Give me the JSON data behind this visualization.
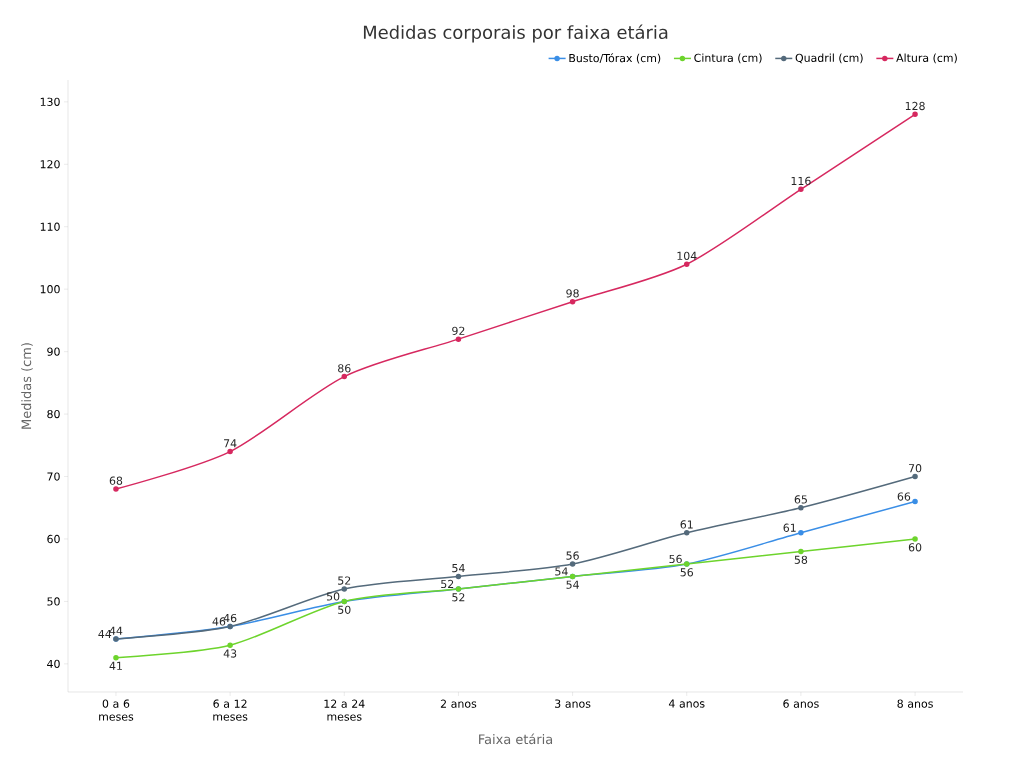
{
  "chart_data": {
    "type": "line",
    "title": "Medidas corporais por faixa etária",
    "xlabel": "Faixa etária",
    "ylabel": "Medidas (cm)",
    "categories": [
      "0 a 6 meses",
      "6 a 12 meses",
      "12 a 24 meses",
      "2 anos",
      "3 anos",
      "4 anos",
      "6 anos",
      "8 anos"
    ],
    "series": [
      {
        "name": "Busto/Tórax (cm)",
        "color": "#3a8ee6",
        "values": [
          44,
          46,
          50,
          52,
          54,
          56,
          61,
          66
        ]
      },
      {
        "name": "Cintura (cm)",
        "color": "#6dd42c",
        "values": [
          41,
          43,
          50,
          52,
          54,
          56,
          58,
          60
        ]
      },
      {
        "name": "Quadril (cm)",
        "color": "#546a7b",
        "values": [
          44,
          46,
          52,
          54,
          56,
          61,
          65,
          70
        ]
      },
      {
        "name": "Altura (cm)",
        "color": "#d6285f",
        "values": [
          68,
          74,
          86,
          92,
          98,
          104,
          116,
          128
        ]
      }
    ],
    "ylim": [
      35.5,
      133.5
    ],
    "yticks": [
      40,
      50,
      60,
      70,
      80,
      90,
      100,
      110,
      120,
      130
    ],
    "data_labels": true,
    "legend": "top right",
    "marker": "circle",
    "line_style": "solid",
    "grid": false
  }
}
